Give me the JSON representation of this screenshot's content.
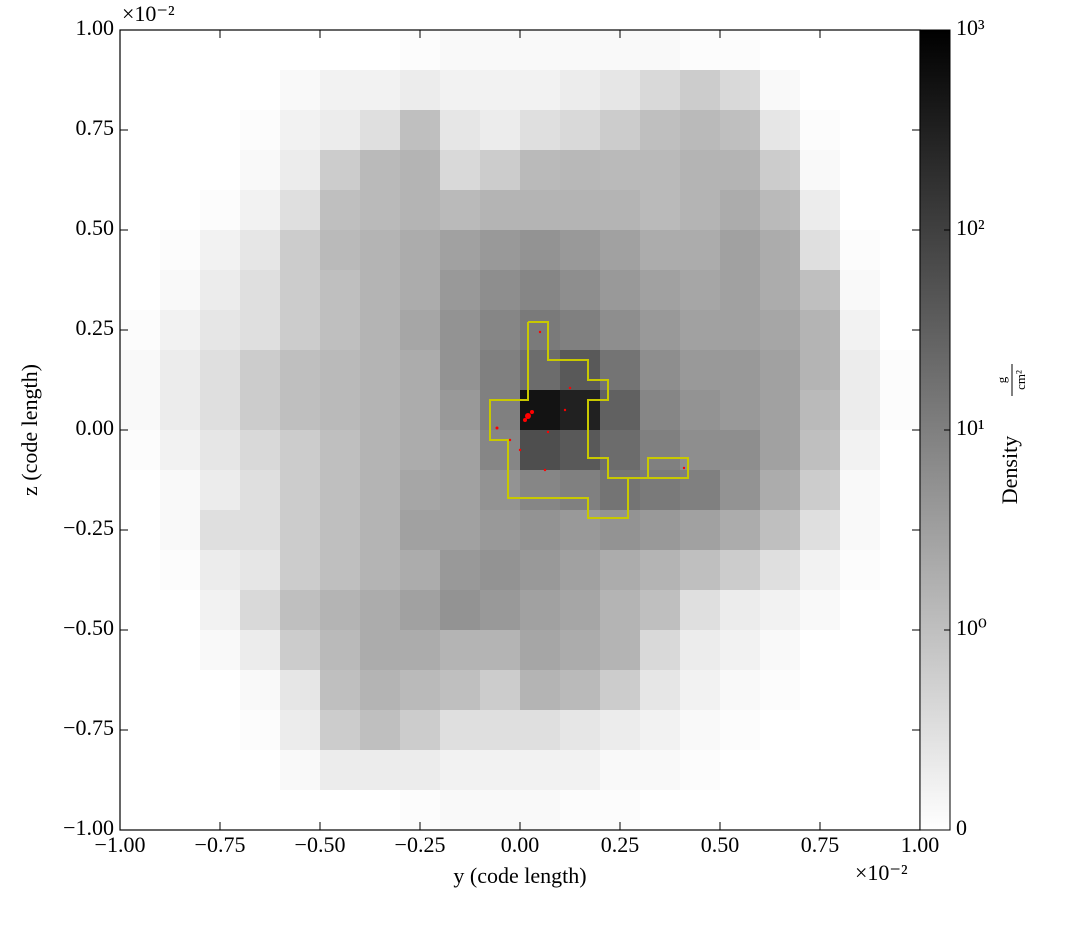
{
  "chart_data": {
    "type": "heatmap",
    "xlabel": "y  (code length)",
    "ylabel": "z  (code length)",
    "offset_label": "×10⁻²",
    "colorbar_label": "Density",
    "colorbar_unit_numerator": "g",
    "colorbar_unit_denominator": "cm²",
    "xlim": [
      -1,
      1
    ],
    "ylim": [
      -1,
      1
    ],
    "xticks": [
      {
        "value": -1,
        "label": "−1.00"
      },
      {
        "value": -0.75,
        "label": "−0.75"
      },
      {
        "value": -0.5,
        "label": "−0.50"
      },
      {
        "value": -0.25,
        "label": "−0.25"
      },
      {
        "value": 0,
        "label": "0.00"
      },
      {
        "value": 0.25,
        "label": "0.25"
      },
      {
        "value": 0.5,
        "label": "0.50"
      },
      {
        "value": 0.75,
        "label": "0.75"
      },
      {
        "value": 1,
        "label": "1.00"
      }
    ],
    "yticks": [
      {
        "value": -1,
        "label": "−1.00"
      },
      {
        "value": -0.75,
        "label": "−0.75"
      },
      {
        "value": -0.5,
        "label": "−0.50"
      },
      {
        "value": -0.25,
        "label": "−0.25"
      },
      {
        "value": 0,
        "label": "0.00"
      },
      {
        "value": 0.25,
        "label": "0.25"
      },
      {
        "value": 0.5,
        "label": "0.50"
      },
      {
        "value": 0.75,
        "label": "0.75"
      },
      {
        "value": 1,
        "label": "1.00"
      }
    ],
    "colorscale": "symlog",
    "clim": [
      0,
      1000
    ],
    "linthresh": 1,
    "colorbar_ticks": [
      0,
      {
        "value": 1,
        "label": "10⁰"
      },
      {
        "value": 10,
        "label": "10¹"
      },
      {
        "value": 100,
        "label": "10²"
      },
      {
        "value": 1000,
        "label": "10³"
      }
    ],
    "colors": [
      "#ffffff",
      "#000000"
    ],
    "z": [
      [
        0,
        0,
        0,
        0,
        0,
        0,
        0,
        0.05,
        0.1,
        0.1,
        0.1,
        0.1,
        0.1,
        0.1,
        0.05,
        0.05,
        0,
        0,
        0,
        0
      ],
      [
        0,
        0,
        0,
        0,
        0.1,
        0.2,
        0.2,
        0.3,
        0.2,
        0.2,
        0.2,
        0.3,
        0.4,
        0.6,
        0.8,
        0.6,
        0.1,
        0,
        0,
        0
      ],
      [
        0,
        0,
        0,
        0.05,
        0.2,
        0.3,
        0.5,
        1,
        0.4,
        0.3,
        0.5,
        0.6,
        0.8,
        1,
        1.2,
        1,
        0.4,
        0.05,
        0,
        0
      ],
      [
        0,
        0,
        0,
        0.1,
        0.3,
        0.8,
        1.2,
        1.5,
        0.6,
        0.8,
        1.2,
        1.3,
        1.2,
        1.2,
        1.5,
        1.5,
        0.8,
        0.1,
        0,
        0
      ],
      [
        0,
        0,
        0.05,
        0.2,
        0.5,
        1,
        1.2,
        1.5,
        1.2,
        1.5,
        1.5,
        1.5,
        1.5,
        1.2,
        1.5,
        2,
        1.2,
        0.3,
        0,
        0
      ],
      [
        0,
        0.05,
        0.2,
        0.4,
        0.8,
        1.2,
        1.5,
        2,
        3,
        4,
        5,
        4,
        3,
        2,
        2,
        3,
        2,
        0.5,
        0.05,
        0
      ],
      [
        0,
        0.1,
        0.3,
        0.5,
        0.8,
        1,
        1.5,
        2,
        4,
        6,
        8,
        6,
        4,
        3,
        2.5,
        3,
        2,
        1,
        0.1,
        0
      ],
      [
        0.05,
        0.2,
        0.4,
        0.5,
        0.8,
        1,
        1.5,
        2.5,
        5,
        8,
        12,
        10,
        6,
        4,
        3,
        3,
        2.5,
        1.5,
        0.2,
        0
      ],
      [
        0.1,
        0.3,
        0.5,
        0.8,
        1,
        1.2,
        1.5,
        2,
        5,
        10,
        20,
        40,
        15,
        6,
        4,
        4,
        3,
        1.5,
        0.3,
        0.05
      ],
      [
        0.1,
        0.3,
        0.5,
        0.8,
        1,
        1.2,
        1.5,
        2,
        4,
        10,
        500,
        300,
        30,
        8,
        5,
        4,
        3,
        1.2,
        0.3,
        0.05
      ],
      [
        0.05,
        0.2,
        0.4,
        0.6,
        0.8,
        1,
        1.5,
        2,
        3,
        8,
        60,
        40,
        20,
        10,
        6,
        6,
        3,
        1,
        0.2,
        0
      ],
      [
        0,
        0.1,
        0.3,
        0.5,
        0.8,
        1,
        1.5,
        2.5,
        3,
        5,
        8,
        10,
        15,
        12,
        10,
        5,
        2,
        0.8,
        0.1,
        0
      ],
      [
        0,
        0.1,
        0.5,
        0.5,
        0.8,
        1,
        1.5,
        3,
        3,
        4,
        5,
        4,
        5,
        4,
        3,
        2,
        1,
        0.5,
        0.1,
        0
      ],
      [
        0,
        0.05,
        0.3,
        0.4,
        0.8,
        1,
        1.5,
        2,
        4,
        5,
        4,
        3,
        2,
        1.5,
        1,
        0.8,
        0.5,
        0.2,
        0.05,
        0
      ],
      [
        0,
        0,
        0.2,
        0.6,
        1,
        1.5,
        2,
        3,
        5,
        4,
        3,
        2.5,
        1.5,
        1,
        0.5,
        0.3,
        0.2,
        0.1,
        0,
        0
      ],
      [
        0,
        0,
        0.1,
        0.3,
        0.8,
        1.2,
        2,
        2,
        1.5,
        1.5,
        2.5,
        2,
        1.5,
        0.6,
        0.3,
        0.2,
        0.1,
        0,
        0,
        0
      ],
      [
        0,
        0,
        0,
        0.1,
        0.4,
        1,
        1.5,
        1.2,
        1,
        0.8,
        1.5,
        1.2,
        0.8,
        0.4,
        0.2,
        0.1,
        0.05,
        0,
        0,
        0
      ],
      [
        0,
        0,
        0,
        0.05,
        0.3,
        0.8,
        1,
        0.8,
        0.5,
        0.5,
        0.5,
        0.4,
        0.3,
        0.2,
        0.1,
        0.05,
        0,
        0,
        0,
        0
      ],
      [
        0,
        0,
        0,
        0,
        0.1,
        0.3,
        0.3,
        0.3,
        0.2,
        0.2,
        0.2,
        0.2,
        0.1,
        0.1,
        0.05,
        0,
        0,
        0,
        0,
        0
      ],
      [
        0,
        0,
        0,
        0,
        0,
        0,
        0,
        0.05,
        0.1,
        0.1,
        0.1,
        0.05,
        0.05,
        0,
        0,
        0,
        0,
        0,
        0,
        0
      ]
    ]
  }
}
